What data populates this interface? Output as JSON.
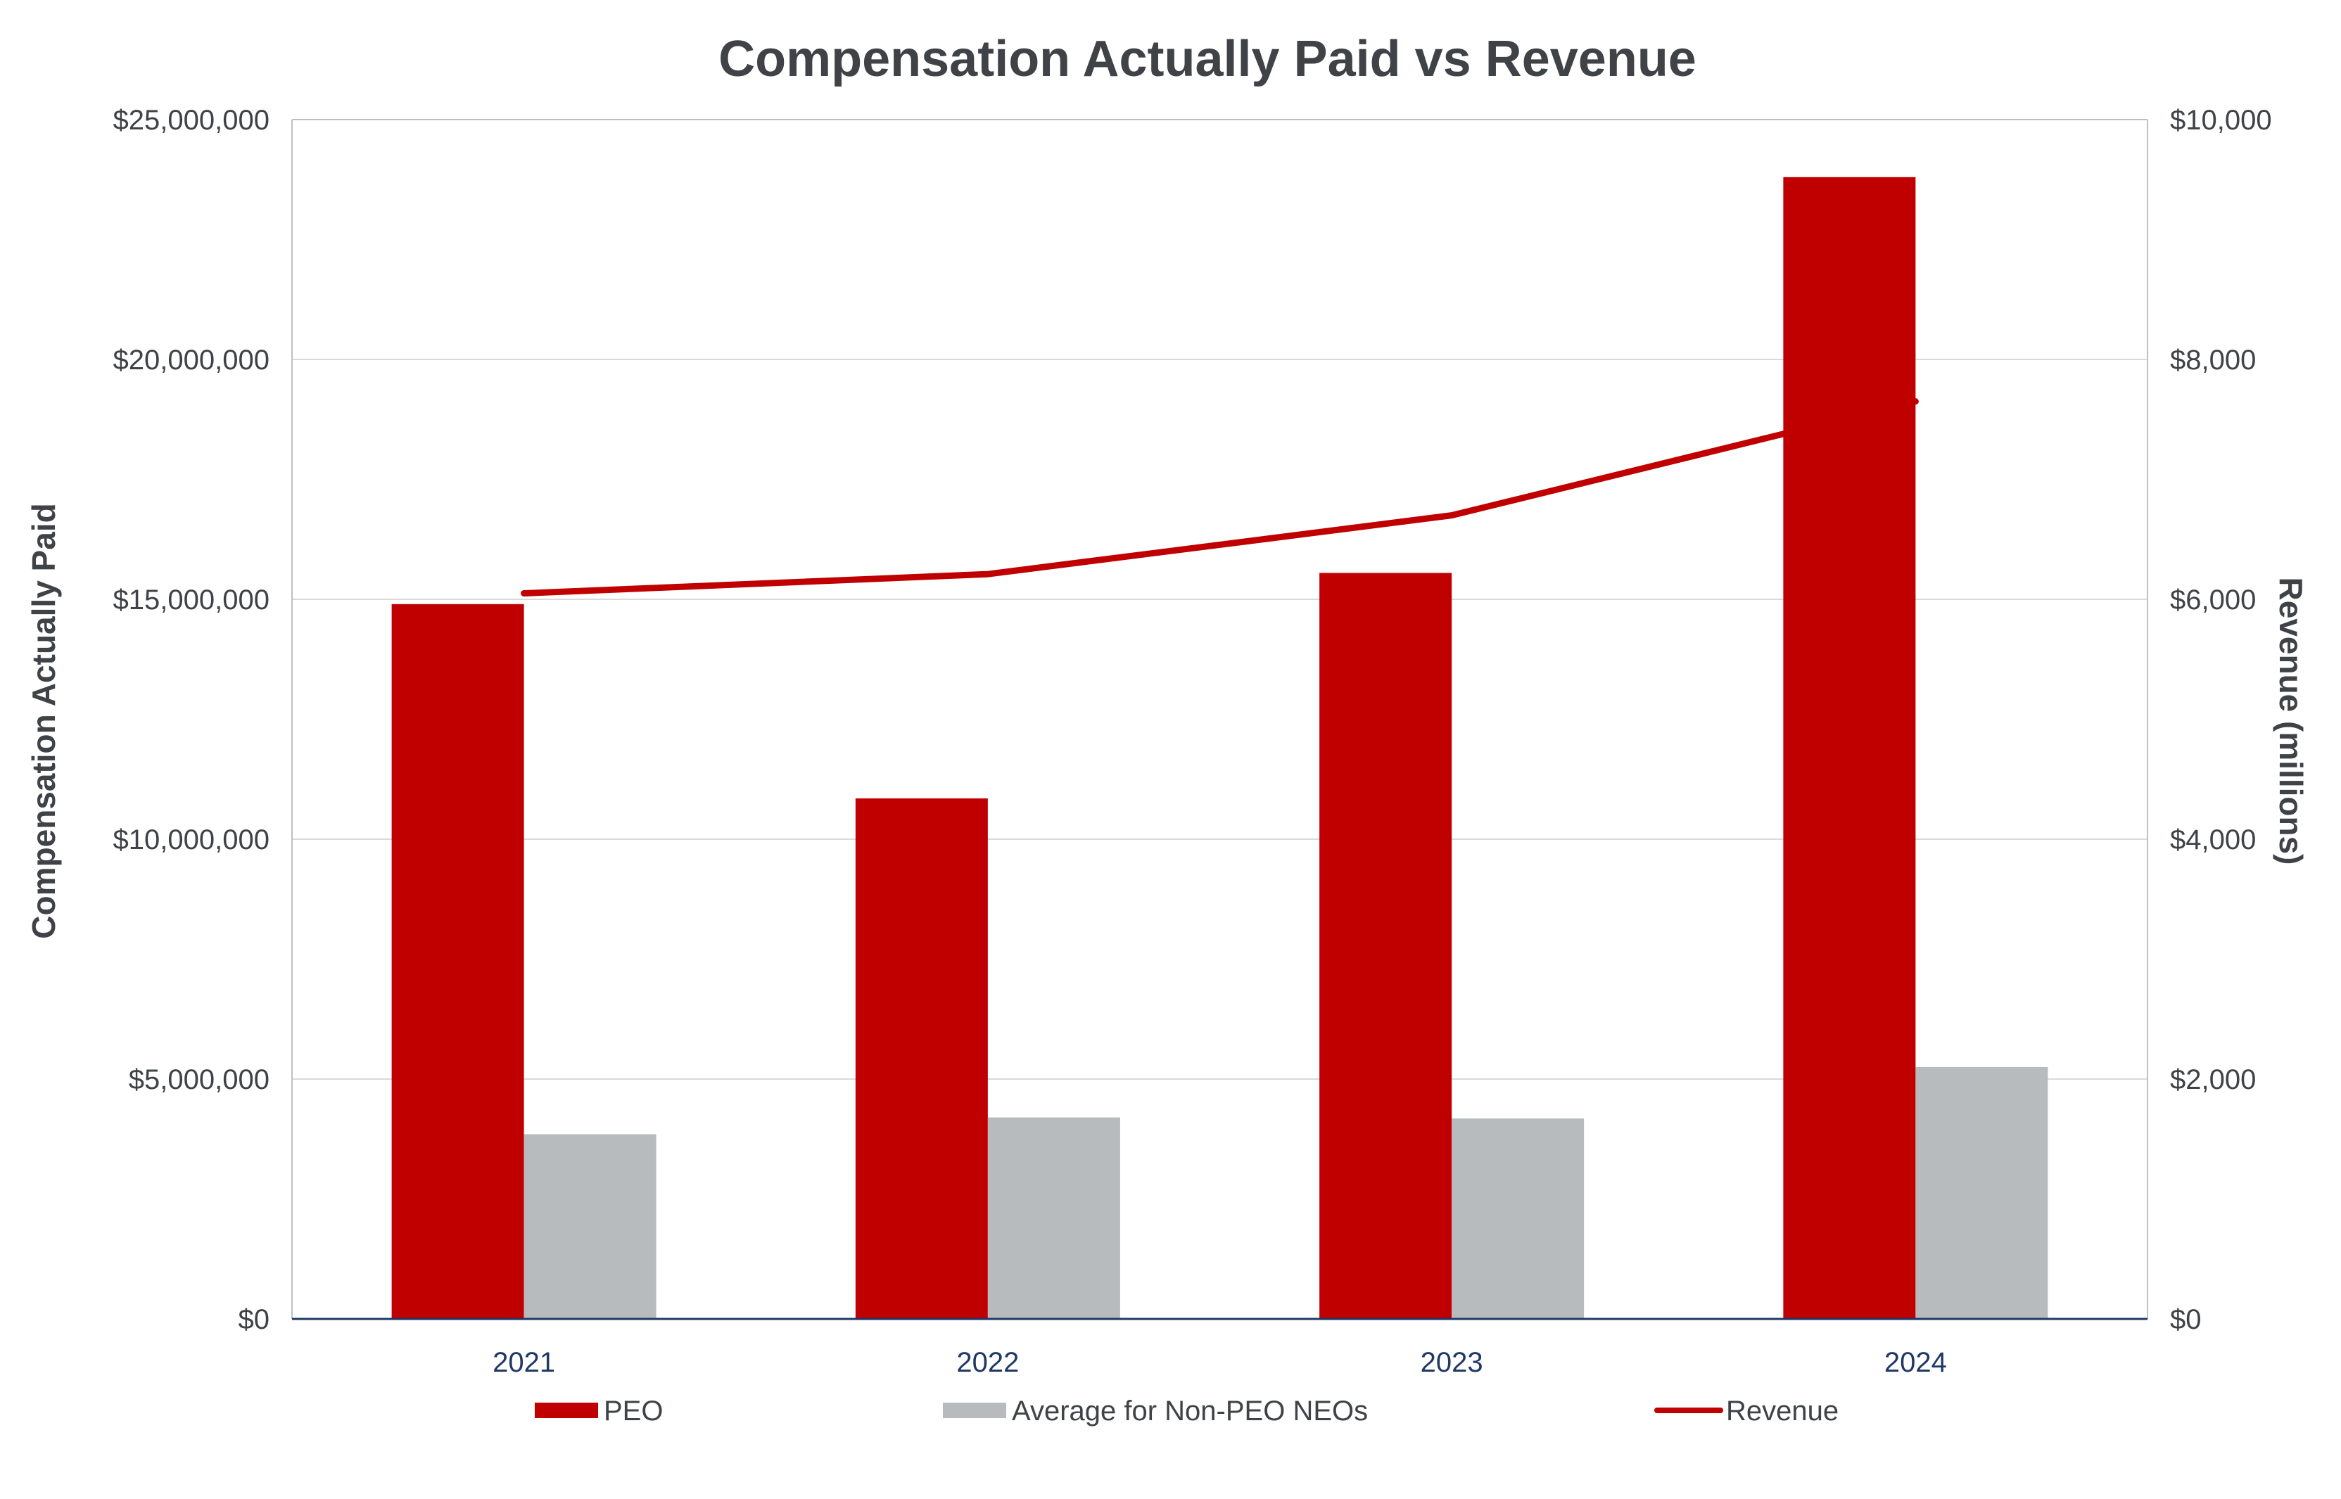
{
  "chart_data": {
    "type": "bar",
    "title": "Compensation Actually Paid vs Revenue",
    "categories": [
      "2021",
      "2022",
      "2023",
      "2024"
    ],
    "series": [
      {
        "name": "PEO",
        "kind": "bar",
        "axis": "left",
        "color": "#c00000",
        "values": [
          14900000,
          10850000,
          15550000,
          23800000
        ]
      },
      {
        "name": "Average for Non-PEO NEOs",
        "kind": "bar",
        "axis": "left",
        "color": "#b8bbbe",
        "values": [
          3850000,
          4200000,
          4180000,
          5250000
        ]
      },
      {
        "name": "Revenue",
        "kind": "line",
        "axis": "right",
        "color": "#c00000",
        "values": [
          6050,
          6210,
          6700,
          7650
        ]
      }
    ],
    "ylabel": "Compensation Actually Paid",
    "y2label": "Revenue (millions)",
    "ylim": [
      0,
      25000000
    ],
    "y2lim": [
      0,
      10000
    ],
    "yticks": [
      "$0",
      "$5,000,000",
      "$10,000,000",
      "$15,000,000",
      "$20,000,000",
      "$25,000,000"
    ],
    "y2ticks": [
      "$0",
      "$2,000",
      "$4,000",
      "$6,000",
      "$8,000",
      "$10,000"
    ],
    "grid": true,
    "legend_position": "bottom"
  },
  "colors": {
    "grid": "#d9d9d9",
    "axis": "#1f3864",
    "frame": "#bfbfbf"
  }
}
